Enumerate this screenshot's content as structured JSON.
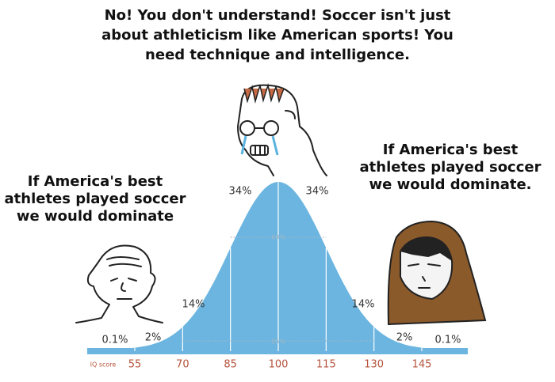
{
  "title": [
    "No! You don't understand! Soccer isn't just",
    "about athleticism like American sports! You",
    "need technique and intelligence."
  ],
  "left_caption": [
    "If America's best",
    "athletes played soccer",
    "we would dominate"
  ],
  "right_caption": [
    "If America's best",
    "athletes played soccer",
    "we would dominate."
  ],
  "percent_labels": [
    "0.1%",
    "2%",
    "14%",
    "34%",
    "34%",
    "14%",
    "2%",
    "0.1%"
  ],
  "band_labels": [
    "68%",
    "95%"
  ],
  "x_axis": {
    "label": "IQ score",
    "ticks": [
      55,
      70,
      85,
      100,
      115,
      130,
      145
    ]
  }
}
